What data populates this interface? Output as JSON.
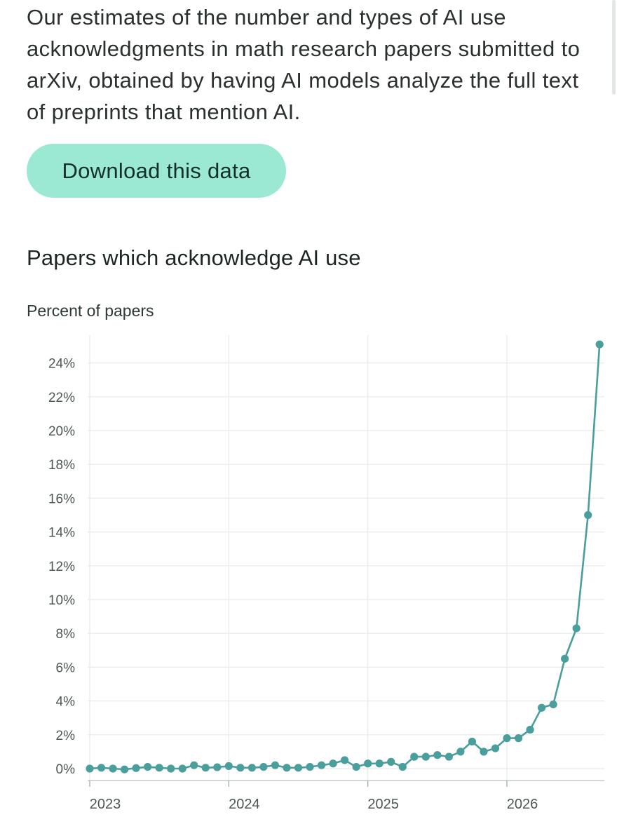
{
  "intro": {
    "text": "Our estimates of the number and types of AI use acknowledgments in math research papers submitted to arXiv, obtained by having AI models analyze the full text of preprints that mention AI."
  },
  "download": {
    "label": "Download this data"
  },
  "colors": {
    "accent_button": "#9be9d3",
    "series": "#4a9e9c",
    "grid": "#e6eaea"
  },
  "chart_data": {
    "type": "line",
    "title": "Papers which acknowledge AI use",
    "ylabel": "Percent of papers",
    "xlabel": "",
    "ylim": [
      0,
      25
    ],
    "xlim": [
      "2023-01",
      "2026-10"
    ],
    "grid": true,
    "y_ticks": [
      "0%",
      "2%",
      "4%",
      "6%",
      "8%",
      "10%",
      "12%",
      "14%",
      "16%",
      "18%",
      "20%",
      "22%",
      "24%"
    ],
    "x_ticks": [
      "2023",
      "2024",
      "2025",
      "2026"
    ],
    "x": [
      "2023-01",
      "2023-02",
      "2023-03",
      "2023-04",
      "2023-05",
      "2023-06",
      "2023-07",
      "2023-08",
      "2023-09",
      "2023-10",
      "2023-11",
      "2023-12",
      "2024-01",
      "2024-02",
      "2024-03",
      "2024-04",
      "2024-05",
      "2024-06",
      "2024-07",
      "2024-08",
      "2024-09",
      "2024-10",
      "2024-11",
      "2024-12",
      "2025-01",
      "2025-02",
      "2025-03",
      "2025-04",
      "2025-05",
      "2025-06",
      "2025-07",
      "2025-08",
      "2025-09",
      "2025-10",
      "2025-11",
      "2025-12",
      "2026-01",
      "2026-02",
      "2026-03",
      "2026-04",
      "2026-05",
      "2026-06",
      "2026-07",
      "2026-08",
      "2026-09"
    ],
    "series": [
      {
        "values": [
          0.0,
          0.05,
          0.0,
          -0.05,
          0.03,
          0.1,
          0.05,
          0.0,
          0.0,
          0.2,
          0.05,
          0.08,
          0.15,
          0.05,
          0.05,
          0.1,
          0.2,
          0.05,
          0.05,
          0.1,
          0.2,
          0.3,
          0.5,
          0.1,
          0.3,
          0.3,
          0.4,
          0.1,
          0.7,
          0.7,
          0.8,
          0.7,
          1.0,
          1.6,
          1.0,
          1.2,
          1.8,
          1.8,
          2.3,
          3.6,
          3.8,
          6.5,
          8.3,
          15.0,
          25.1
        ]
      }
    ]
  }
}
